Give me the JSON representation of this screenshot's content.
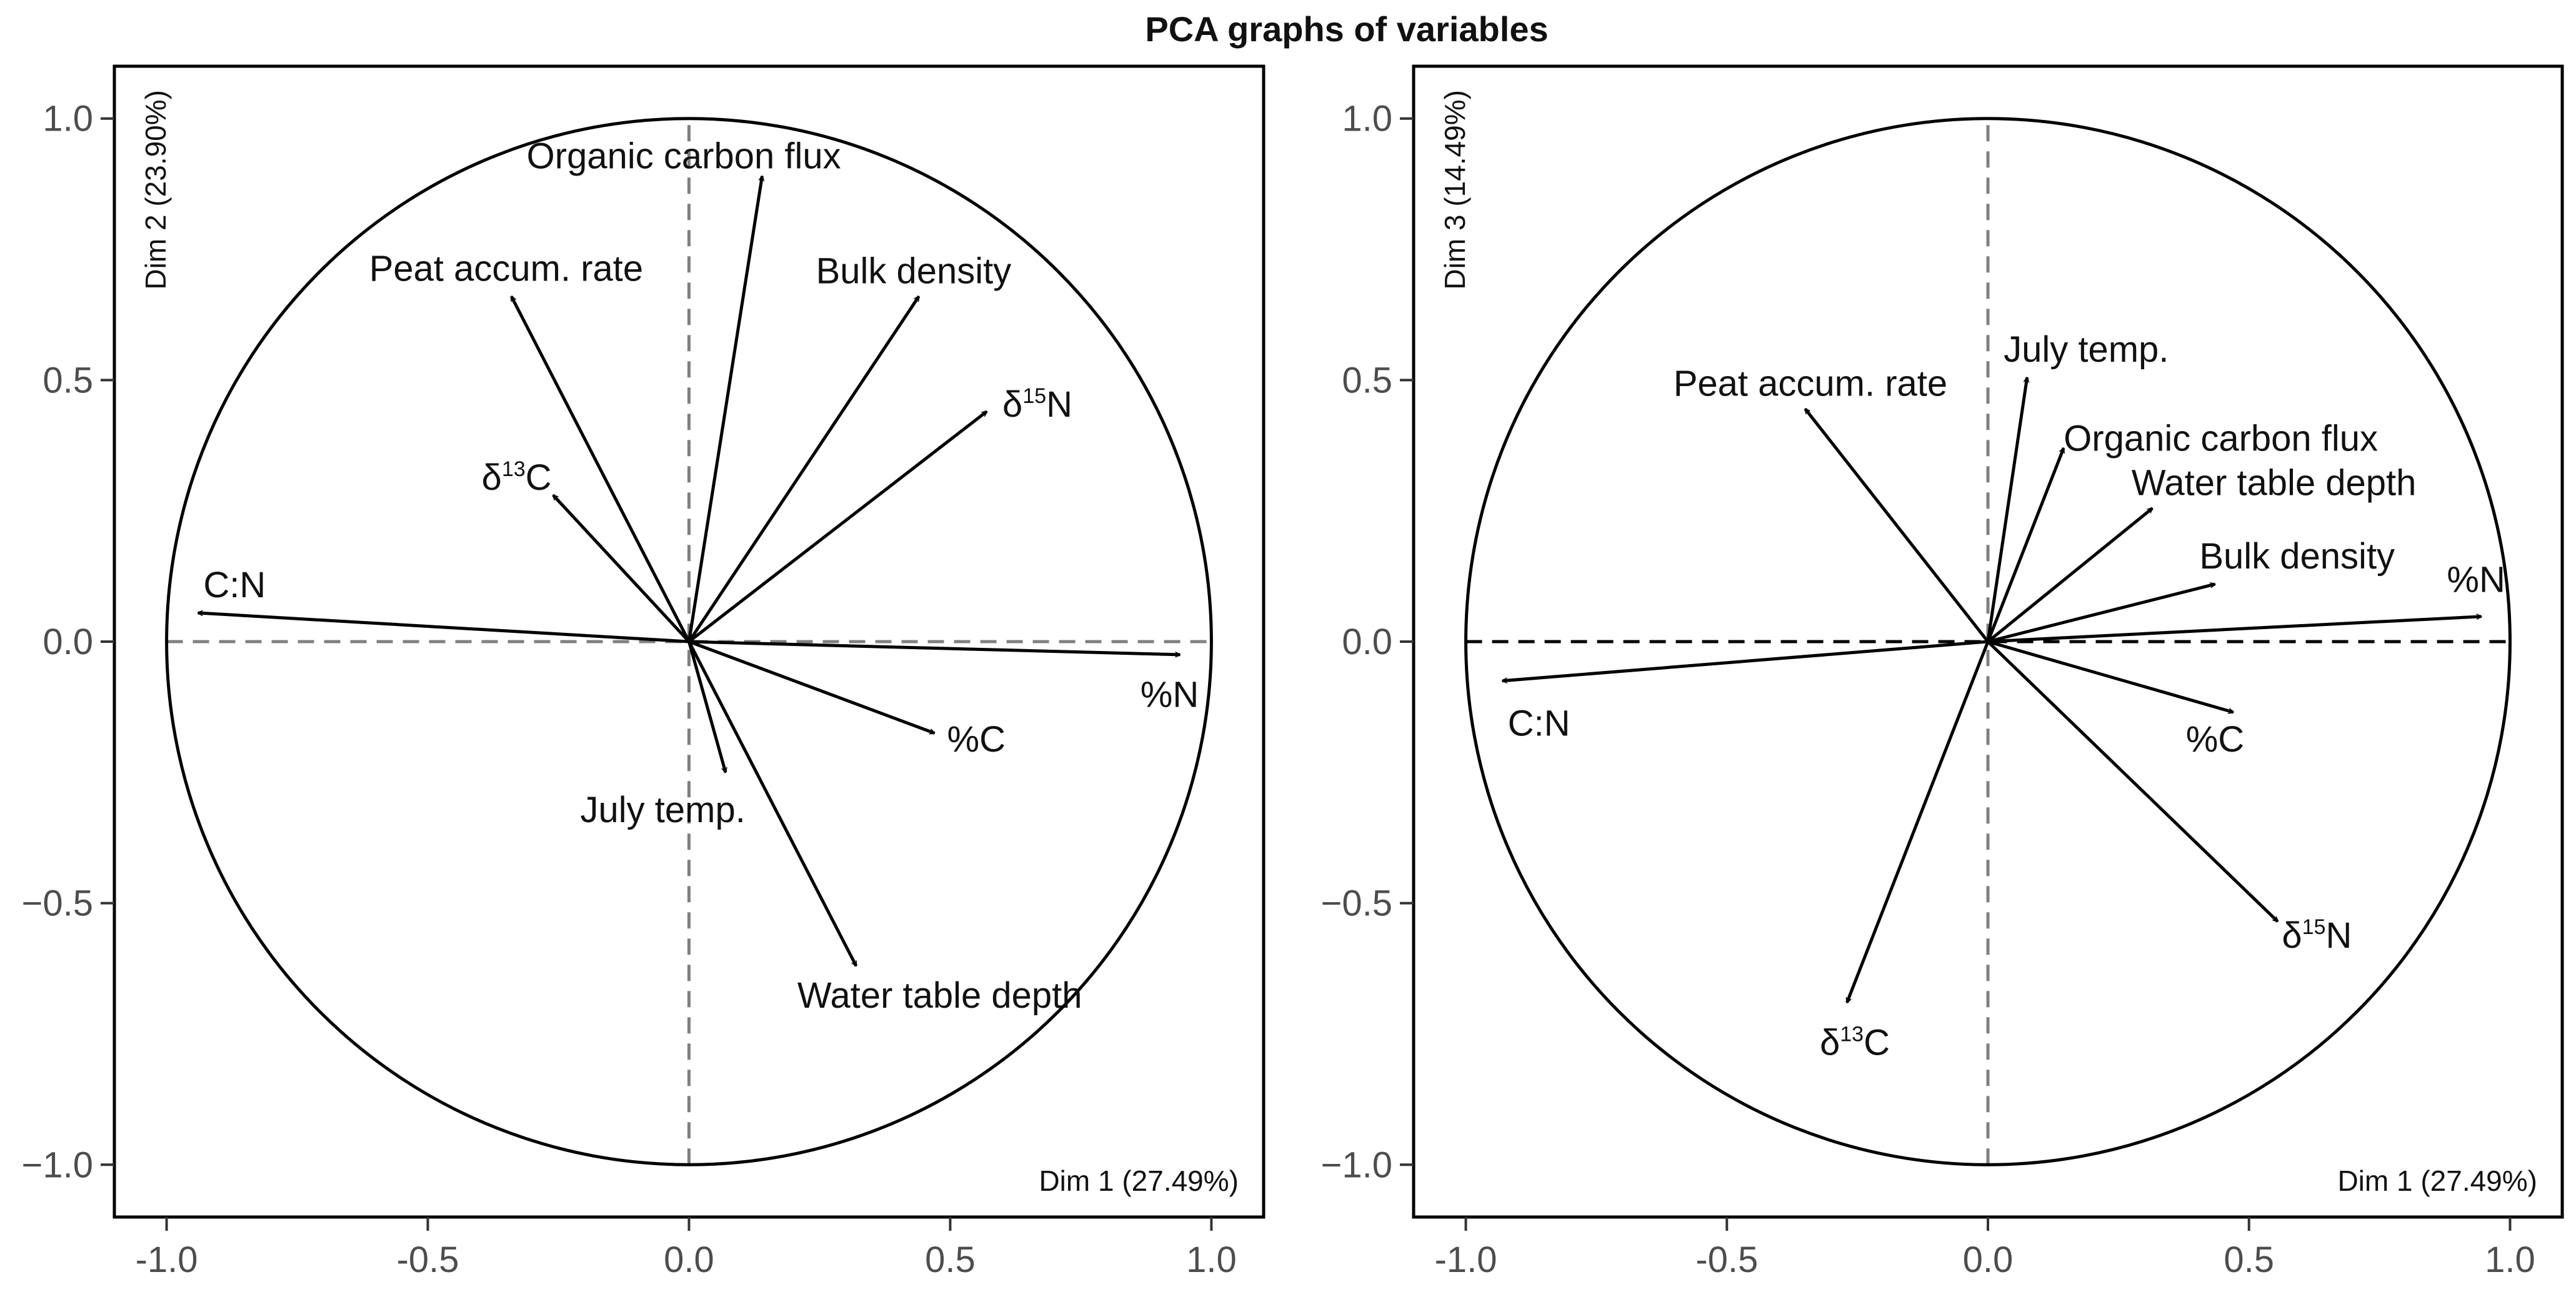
{
  "chart_data": {
    "title": "PCA graphs of variables",
    "type": "pca-correlation-circle",
    "panels": [
      {
        "id": "dim1-dim2",
        "xlabel": "Dim 1 (27.49%)",
        "ylabel": "Dim 2 (23.90%)",
        "xlim": [
          -1.1,
          1.1
        ],
        "ylim": [
          -1.1,
          1.1
        ],
        "xticks": [
          {
            "value": -1.0,
            "label": "-1.0"
          },
          {
            "value": -0.5,
            "label": "-0.5"
          },
          {
            "value": 0.0,
            "label": "0.0"
          },
          {
            "value": 0.5,
            "label": "0.5"
          },
          {
            "value": 1.0,
            "label": "1.0"
          }
        ],
        "yticks": [
          {
            "value": -1.0,
            "label": "−1.0"
          },
          {
            "value": -0.5,
            "label": "−0.5"
          },
          {
            "value": 0.0,
            "label": "0.0"
          },
          {
            "value": 0.5,
            "label": "0.5"
          },
          {
            "value": 1.0,
            "label": "1.0"
          }
        ],
        "unit_circle": true,
        "vectors": [
          {
            "label": "Organic carbon flux",
            "x": 0.14,
            "y": 0.89,
            "label_x": -0.01,
            "label_y": 0.905,
            "anchor": "middle"
          },
          {
            "label": "Peat accum. rate",
            "x": -0.34,
            "y": 0.66,
            "label_x": -0.35,
            "label_y": 0.69,
            "anchor": "middle"
          },
          {
            "label": "Bulk density",
            "x": 0.44,
            "y": 0.66,
            "label_x": 0.43,
            "label_y": 0.685,
            "anchor": "middle"
          },
          {
            "label": "δ",
            "sup": "15",
            "label_tail": "N",
            "x": 0.57,
            "y": 0.44,
            "label_x": 0.6,
            "label_y": 0.43,
            "anchor": "start"
          },
          {
            "label": "δ",
            "sup": "13",
            "label_tail": "C",
            "x": -0.26,
            "y": 0.28,
            "label_x": -0.33,
            "label_y": 0.29,
            "anchor": "middle"
          },
          {
            "label": "C:N",
            "x": -0.94,
            "y": 0.055,
            "label_x": -0.87,
            "label_y": 0.085,
            "anchor": "middle"
          },
          {
            "label": "%N",
            "x": 0.94,
            "y": -0.025,
            "label_x": 0.92,
            "label_y": -0.125,
            "anchor": "middle"
          },
          {
            "label": "%C",
            "x": 0.47,
            "y": -0.175,
            "label_x": 0.55,
            "label_y": -0.21,
            "anchor": "middle"
          },
          {
            "label": "July temp.",
            "x": 0.07,
            "y": -0.25,
            "label_x": -0.05,
            "label_y": -0.345,
            "anchor": "middle"
          },
          {
            "label": "Water table depth",
            "x": 0.32,
            "y": -0.62,
            "label_x": 0.48,
            "label_y": -0.7,
            "anchor": "middle"
          }
        ]
      },
      {
        "id": "dim1-dim3",
        "xlabel": "Dim 1 (27.49%)",
        "ylabel": "Dim 3 (14.49%)",
        "xlim": [
          -1.1,
          1.1
        ],
        "ylim": [
          -1.1,
          1.1
        ],
        "xticks": [
          {
            "value": -1.0,
            "label": "-1.0"
          },
          {
            "value": -0.5,
            "label": "-0.5"
          },
          {
            "value": 0.0,
            "label": "0.0"
          },
          {
            "value": 0.5,
            "label": "0.5"
          },
          {
            "value": 1.0,
            "label": "1.0"
          }
        ],
        "yticks": [
          {
            "value": -1.0,
            "label": "−1.0"
          },
          {
            "value": -0.5,
            "label": "−0.5"
          },
          {
            "value": 0.0,
            "label": "0.0"
          },
          {
            "value": 0.5,
            "label": "0.5"
          },
          {
            "value": 1.0,
            "label": "1.0"
          }
        ],
        "unit_circle": true,
        "vectors": [
          {
            "label": "Peat accum. rate",
            "x": -0.35,
            "y": 0.445,
            "label_x": -0.34,
            "label_y": 0.47,
            "anchor": "middle"
          },
          {
            "label": "July temp.",
            "x": 0.075,
            "y": 0.505,
            "label_x": 0.03,
            "label_y": 0.535,
            "anchor": "start"
          },
          {
            "label": "Organic carbon flux",
            "x": 0.145,
            "y": 0.37,
            "label_x": 0.145,
            "label_y": 0.365,
            "anchor": "start"
          },
          {
            "label": "Water table depth",
            "x": 0.315,
            "y": 0.255,
            "label_x": 0.275,
            "label_y": 0.28,
            "anchor": "start"
          },
          {
            "label": "Bulk density",
            "x": 0.435,
            "y": 0.11,
            "label_x": 0.405,
            "label_y": 0.14,
            "anchor": "start"
          },
          {
            "label": "%N",
            "x": 0.945,
            "y": 0.048,
            "label_x": 0.935,
            "label_y": 0.095,
            "anchor": "middle"
          },
          {
            "label": "C:N",
            "x": -0.93,
            "y": -0.075,
            "label_x": -0.86,
            "label_y": -0.18,
            "anchor": "middle"
          },
          {
            "label": "%C",
            "x": 0.47,
            "y": -0.135,
            "label_x": 0.435,
            "label_y": -0.21,
            "anchor": "middle"
          },
          {
            "label": "δ",
            "sup": "15",
            "label_tail": "N",
            "x": 0.555,
            "y": -0.535,
            "label_x": 0.63,
            "label_y": -0.585,
            "anchor": "middle"
          },
          {
            "label": "δ",
            "sup": "13",
            "label_tail": "C",
            "x": -0.27,
            "y": -0.69,
            "label_x": -0.255,
            "label_y": -0.79,
            "anchor": "middle"
          }
        ]
      }
    ]
  }
}
